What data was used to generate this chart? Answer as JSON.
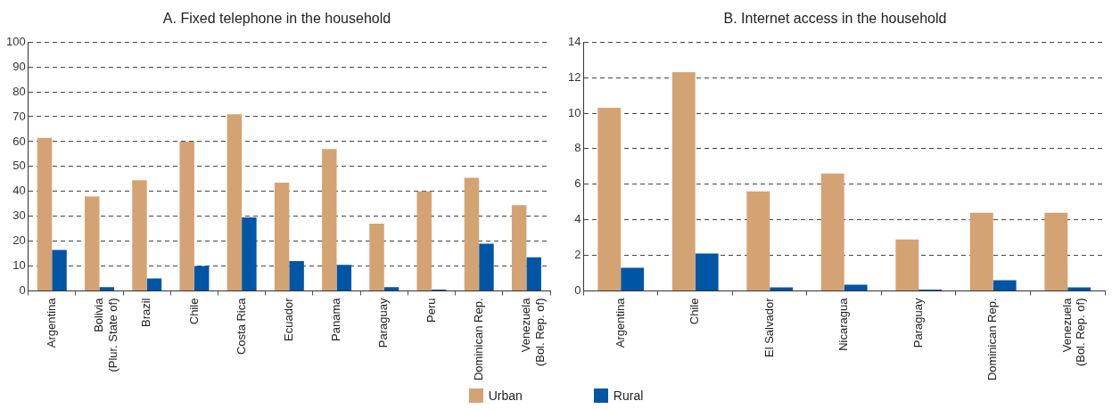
{
  "chart_data": [
    {
      "type": "bar",
      "title": "A. Fixed telephone in the household",
      "categories": [
        "Argentina",
        "Bolivia\n(Plur. State of)",
        "Brazil",
        "Chile",
        "Costa Rica",
        "Ecuador",
        "Panama",
        "Paraguay",
        "Peru",
        "Dominican Rep.",
        "Venezuela\n(Bol. Rep. of)"
      ],
      "series": [
        {
          "name": "Urban",
          "color": "#d4a373",
          "values": [
            61.5,
            38,
            44.5,
            60,
            71,
            43.5,
            57,
            27,
            40,
            45.5,
            34.5
          ]
        },
        {
          "name": "Rural",
          "color": "#0055a5",
          "values": [
            16.5,
            1.5,
            5,
            10,
            29.5,
            12,
            10.5,
            1.5,
            0.5,
            19,
            13.5
          ]
        }
      ],
      "ylim": [
        0,
        100
      ],
      "yticks": [
        0,
        10,
        20,
        30,
        40,
        50,
        60,
        70,
        80,
        90,
        100
      ],
      "grid": "y",
      "legend": "bottom"
    },
    {
      "type": "bar",
      "title": "B. Internet access in the household",
      "categories": [
        "Argentina",
        "Chile",
        "El Salvador",
        "Nicaragua",
        "Paraguay",
        "Dominican Rep.",
        "Venezuela\n(Bol. Rep. of)"
      ],
      "series": [
        {
          "color": "#d4a373",
          "values": [
            10.3,
            12.3,
            5.6,
            6.6,
            2.9,
            4.4,
            4.4
          ]
        },
        {
          "color": "#0055a5",
          "values": [
            1.3,
            2.1,
            0.2,
            0.35,
            0.08,
            0.6,
            0.2
          ]
        }
      ],
      "ylim": [
        0,
        14
      ],
      "yticks": [
        0,
        2,
        4,
        6,
        8,
        10,
        12,
        14
      ],
      "grid": "y"
    }
  ]
}
